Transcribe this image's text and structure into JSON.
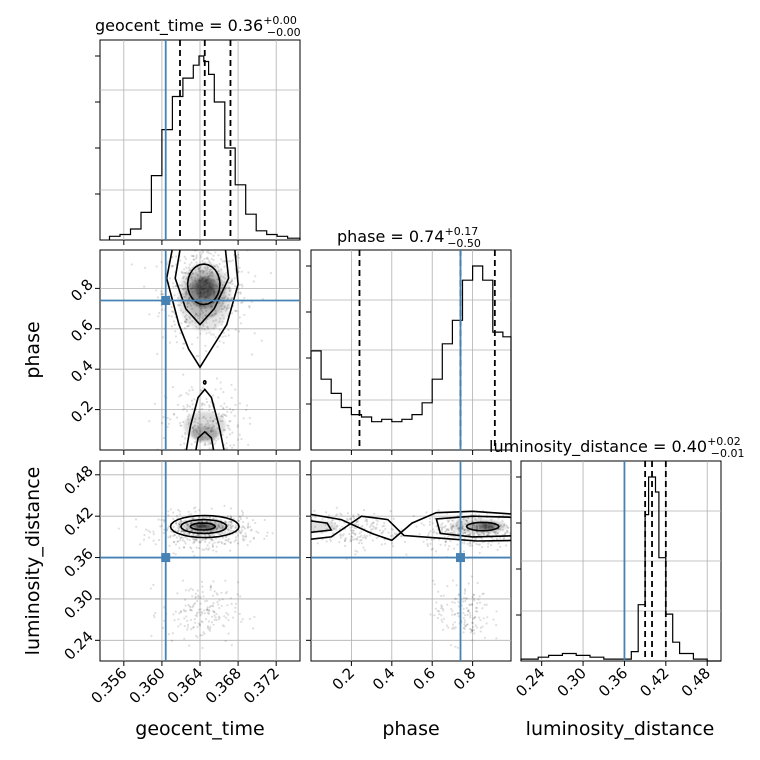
{
  "chart_data": {
    "type": "corner",
    "parameters": [
      "geocent_time",
      "phase",
      "luminosity_distance"
    ],
    "truths": {
      "geocent_time": 0.3604,
      "phase": 0.74,
      "luminosity_distance": 0.36
    },
    "truth_color": "#4682b4",
    "axes_titles": {
      "geocent_time": {
        "prefix": "geocent_time = 0.36",
        "sup": "+0.00",
        "sub": "−0.00"
      },
      "phase": {
        "prefix": "phase = 0.74",
        "sup": "+0.17",
        "sub": "−0.50"
      },
      "luminosity_distance": {
        "prefix": "luminosity_distance = 0.40",
        "sup": "+0.02",
        "sub": "−0.01"
      }
    },
    "xlabels": [
      "geocent_time",
      "phase",
      "luminosity_distance"
    ],
    "ylabels": {
      "phase": "phase",
      "luminosity_distance": "luminosity_distance"
    },
    "ranges": {
      "geocent_time": [
        0.3535,
        0.3745
      ],
      "phase": [
        0.0,
        0.99
      ],
      "luminosity_distance": [
        0.21,
        0.5
      ]
    },
    "ticks": {
      "geocent_time": [
        "0.356",
        "0.360",
        "0.364",
        "0.368",
        "0.372"
      ],
      "phase_x": [
        "0.2",
        "0.4",
        "0.6",
        "0.8"
      ],
      "phase_y": [
        "0.2",
        "0.4",
        "0.6",
        "0.8"
      ],
      "luminosity_distance": [
        "0.24",
        "0.30",
        "0.36",
        "0.42",
        "0.48"
      ]
    },
    "quantiles": {
      "geocent_time": [
        0.3619,
        0.3645,
        0.3672
      ],
      "phase": [
        0.24,
        0.74,
        0.91
      ],
      "luminosity_distance": [
        0.39,
        0.4,
        0.42
      ]
    },
    "hist_geocent_time": {
      "edges": [
        0.3545,
        0.3556,
        0.3567,
        0.3578,
        0.3589,
        0.36,
        0.3611,
        0.3622,
        0.3633,
        0.3639,
        0.3644,
        0.3649,
        0.3655,
        0.3666,
        0.3677,
        0.3688,
        0.3699,
        0.371,
        0.3721,
        0.3732,
        0.3745
      ],
      "values": [
        0.02,
        0.03,
        0.06,
        0.15,
        0.35,
        0.6,
        0.78,
        0.88,
        0.95,
        1.0,
        0.97,
        0.9,
        0.75,
        0.5,
        0.3,
        0.14,
        0.05,
        0.03,
        0.02,
        0.01
      ]
    },
    "hist_phase": {
      "edges": [
        0.0,
        0.05,
        0.1,
        0.15,
        0.2,
        0.25,
        0.3,
        0.35,
        0.4,
        0.45,
        0.5,
        0.55,
        0.6,
        0.65,
        0.7,
        0.75,
        0.8,
        0.85,
        0.9,
        0.95,
        0.99
      ],
      "values": [
        0.42,
        0.3,
        0.24,
        0.18,
        0.15,
        0.14,
        0.12,
        0.13,
        0.12,
        0.13,
        0.15,
        0.2,
        0.3,
        0.45,
        0.55,
        0.72,
        0.78,
        0.72,
        0.5,
        0.48
      ]
    },
    "hist_luminosity_distance": {
      "edges": [
        0.21,
        0.235,
        0.25,
        0.27,
        0.29,
        0.31,
        0.33,
        0.35,
        0.37,
        0.38,
        0.39,
        0.395,
        0.405,
        0.41,
        0.42,
        0.43,
        0.44,
        0.46,
        0.48,
        0.5
      ],
      "values": [
        0.01,
        0.02,
        0.03,
        0.04,
        0.03,
        0.02,
        0.01,
        0.01,
        0.05,
        0.3,
        0.78,
        0.98,
        0.9,
        0.55,
        0.25,
        0.1,
        0.04,
        0.01,
        0.0
      ]
    }
  }
}
